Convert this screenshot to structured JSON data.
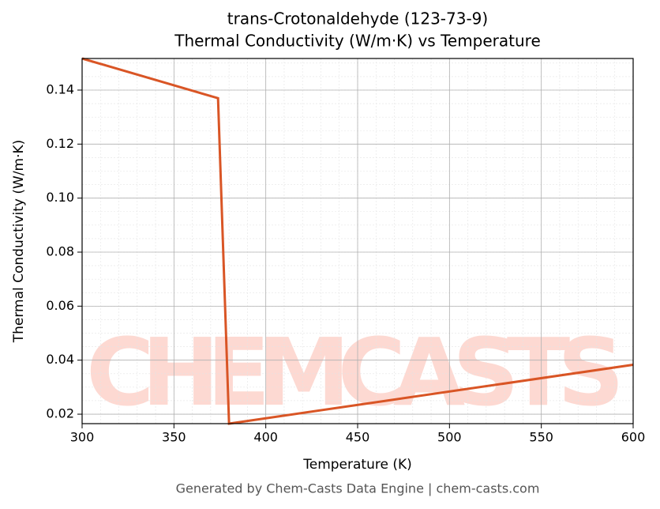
{
  "chart_data": {
    "type": "line",
    "title": [
      "trans-Crotonaldehyde (123-73-9)",
      "Thermal Conductivity (W/m·K) vs Temperature"
    ],
    "x_label": "Temperature (K)",
    "y_label": "Thermal Conductivity (W/m·K)",
    "x": [
      300,
      374,
      380,
      600
    ],
    "series": [
      {
        "name": "Thermal Conductivity",
        "color": "#d95525",
        "values": [
          0.1517,
          0.137,
          0.0165,
          0.0383
        ]
      }
    ],
    "xlim": [
      300,
      600
    ],
    "xticks": [
      300,
      350,
      400,
      450,
      500,
      550,
      600
    ],
    "ylim": [
      0.0165,
      0.1517
    ],
    "yticks": [
      {
        "value": 0.02,
        "label": "0.02"
      },
      {
        "value": 0.04,
        "label": "0.04"
      },
      {
        "value": 0.06,
        "label": "0.06"
      },
      {
        "value": 0.08,
        "label": "0.08"
      },
      {
        "value": 0.1,
        "label": "0.10"
      },
      {
        "value": 0.12,
        "label": "0.12"
      },
      {
        "value": 0.14,
        "label": "0.14"
      }
    ],
    "grid": true,
    "minor_grid": true,
    "watermark": "CHEMCASTS",
    "footer": "Generated by Chem-Casts Data Engine | chem-casts.com"
  }
}
